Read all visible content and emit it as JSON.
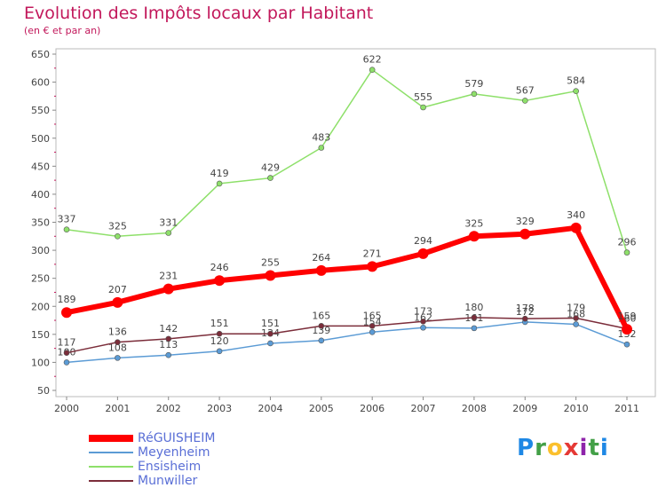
{
  "header": {
    "title": "Evolution des Impôts locaux par Habitant",
    "subtitle": "(en € et par an)"
  },
  "logo": {
    "letters": [
      "P",
      "r",
      "o",
      "x",
      "i",
      "t",
      "i"
    ],
    "colors": [
      "#1e88e5",
      "#43a047",
      "#fbc02d",
      "#e53935",
      "#8e24aa",
      "#43a047",
      "#1e88e5"
    ]
  },
  "chart_data": {
    "type": "line",
    "x": [
      "2000",
      "2001",
      "2002",
      "2003",
      "2004",
      "2005",
      "2006",
      "2007",
      "2008",
      "2009",
      "2010",
      "2011"
    ],
    "ylim": [
      50,
      650
    ],
    "yticks": [
      50,
      100,
      150,
      200,
      250,
      300,
      350,
      400,
      450,
      500,
      550,
      600,
      650
    ],
    "grid": false,
    "legend_position": "bottom-left",
    "series": [
      {
        "name": "Ensisheim",
        "color": "#8ee06a",
        "width": 1.5,
        "values": [
          337,
          325,
          331,
          419,
          429,
          483,
          622,
          555,
          579,
          567,
          584,
          296
        ]
      },
      {
        "name": "Meyenheim",
        "color": "#5b9bd5",
        "width": 1.5,
        "values": [
          100,
          108,
          113,
          120,
          134,
          139,
          154,
          162,
          161,
          172,
          168,
          132
        ]
      },
      {
        "name": "Munwiller",
        "color": "#7b2d3a",
        "width": 1.5,
        "values": [
          117,
          136,
          142,
          151,
          151,
          165,
          165,
          173,
          180,
          178,
          179,
          160
        ]
      },
      {
        "name": "RéGUISHEIM",
        "color": "#ff0000",
        "width": 6,
        "values": [
          189,
          207,
          231,
          246,
          255,
          264,
          271,
          294,
          325,
          329,
          340,
          159
        ]
      }
    ],
    "legend_order": [
      "RéGUISHEIM",
      "Meyenheim",
      "Ensisheim",
      "Munwiller"
    ]
  }
}
